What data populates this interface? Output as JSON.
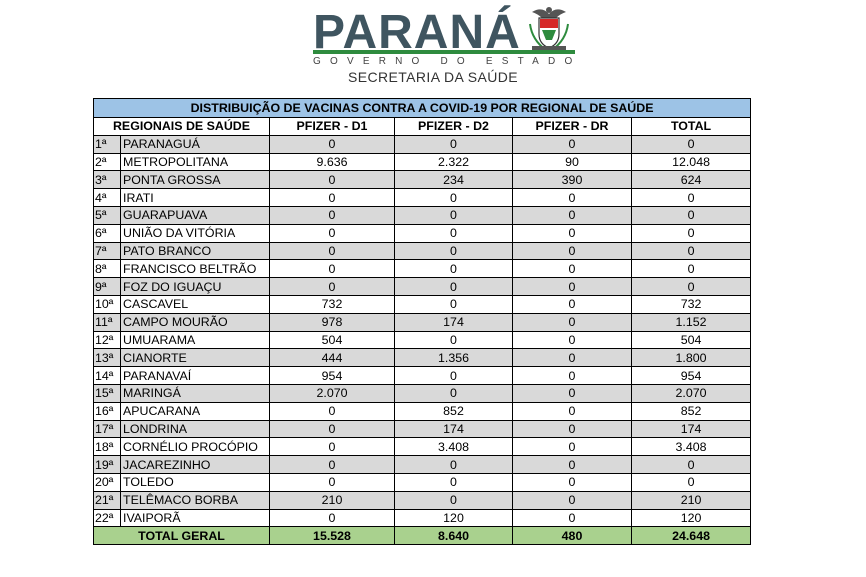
{
  "header": {
    "logo_word": "PARANÁ",
    "subtitle_govt": "GOVERNO DO ESTADO",
    "subtitle_dept": "SECRETARIA DA SAÚDE",
    "seal_icon": "parana-state-seal-icon",
    "colors": {
      "logo_text": "#3f5560",
      "accent_green": "#2e8b3e"
    }
  },
  "table": {
    "title": "DISTRIBUIÇÃO DE VACINAS CONTRA A COVID-19 POR REGIONAL DE SAÚDE",
    "columns": [
      "REGIONAIS DE SAÚDE",
      "PFIZER - D1",
      "PFIZER - D2",
      "PFIZER - DR",
      "TOTAL"
    ],
    "rows": [
      {
        "idx": "1ª",
        "name": "PARANAGUÁ",
        "d1": "0",
        "d2": "0",
        "dr": "0",
        "total": "0"
      },
      {
        "idx": "2ª",
        "name": "METROPOLITANA",
        "d1": "9.636",
        "d2": "2.322",
        "dr": "90",
        "total": "12.048"
      },
      {
        "idx": "3ª",
        "name": "PONTA GROSSA",
        "d1": "0",
        "d2": "234",
        "dr": "390",
        "total": "624"
      },
      {
        "idx": "4ª",
        "name": "IRATI",
        "d1": "0",
        "d2": "0",
        "dr": "0",
        "total": "0"
      },
      {
        "idx": "5ª",
        "name": "GUARAPUAVA",
        "d1": "0",
        "d2": "0",
        "dr": "0",
        "total": "0"
      },
      {
        "idx": "6ª",
        "name": "UNIÃO DA VITÓRIA",
        "d1": "0",
        "d2": "0",
        "dr": "0",
        "total": "0"
      },
      {
        "idx": "7ª",
        "name": "PATO BRANCO",
        "d1": "0",
        "d2": "0",
        "dr": "0",
        "total": "0"
      },
      {
        "idx": "8ª",
        "name": "FRANCISCO BELTRÃO",
        "d1": "0",
        "d2": "0",
        "dr": "0",
        "total": "0"
      },
      {
        "idx": "9ª",
        "name": "FOZ DO IGUAÇU",
        "d1": "0",
        "d2": "0",
        "dr": "0",
        "total": "0"
      },
      {
        "idx": "10ª",
        "name": "CASCAVEL",
        "d1": "732",
        "d2": "0",
        "dr": "0",
        "total": "732"
      },
      {
        "idx": "11ª",
        "name": "CAMPO MOURÃO",
        "d1": "978",
        "d2": "174",
        "dr": "0",
        "total": "1.152"
      },
      {
        "idx": "12ª",
        "name": "UMUARAMA",
        "d1": "504",
        "d2": "0",
        "dr": "0",
        "total": "504"
      },
      {
        "idx": "13ª",
        "name": "CIANORTE",
        "d1": "444",
        "d2": "1.356",
        "dr": "0",
        "total": "1.800"
      },
      {
        "idx": "14ª",
        "name": "PARANAVAÍ",
        "d1": "954",
        "d2": "0",
        "dr": "0",
        "total": "954"
      },
      {
        "idx": "15ª",
        "name": "MARINGÁ",
        "d1": "2.070",
        "d2": "0",
        "dr": "0",
        "total": "2.070"
      },
      {
        "idx": "16ª",
        "name": "APUCARANA",
        "d1": "0",
        "d2": "852",
        "dr": "0",
        "total": "852"
      },
      {
        "idx": "17ª",
        "name": "LONDRINA",
        "d1": "0",
        "d2": "174",
        "dr": "0",
        "total": "174"
      },
      {
        "idx": "18ª",
        "name": "CORNÉLIO PROCÓPIO",
        "d1": "0",
        "d2": "3.408",
        "dr": "0",
        "total": "3.408"
      },
      {
        "idx": "19ª",
        "name": "JACAREZINHO",
        "d1": "0",
        "d2": "0",
        "dr": "0",
        "total": "0"
      },
      {
        "idx": "20ª",
        "name": "TOLEDO",
        "d1": "0",
        "d2": "0",
        "dr": "0",
        "total": "0"
      },
      {
        "idx": "21ª",
        "name": "TELÊMACO BORBA",
        "d1": "210",
        "d2": "0",
        "dr": "0",
        "total": "210"
      },
      {
        "idx": "22ª",
        "name": "IVAIPORÃ",
        "d1": "0",
        "d2": "120",
        "dr": "0",
        "total": "120"
      }
    ],
    "total_row": {
      "label": "TOTAL GERAL",
      "d1": "15.528",
      "d2": "8.640",
      "dr": "480",
      "total": "24.648"
    },
    "colors": {
      "title_bg": "#9dc3e6",
      "alt_row_bg": "#d9d9d9",
      "total_bg": "#a9d18e"
    }
  }
}
